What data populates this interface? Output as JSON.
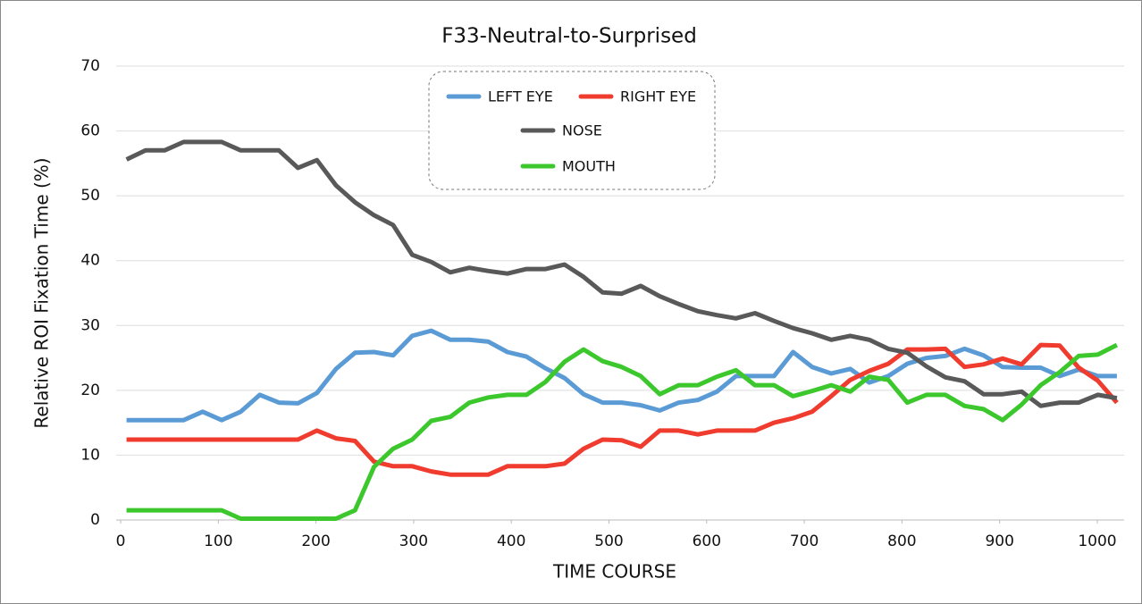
{
  "chart_data": {
    "type": "line",
    "title": "F33-Neutral-to-Surprised",
    "x_label": "TIME  COURSE",
    "y_label": "Relative  ROI  Fixation  Time  (%)",
    "x": [
      6,
      25.5,
      45,
      64.5,
      84,
      103.5,
      123,
      142.5,
      162,
      181.5,
      201,
      220.5,
      240,
      259.5,
      279,
      298.5,
      318,
      337.5,
      357,
      376.5,
      396,
      415.5,
      435,
      454.5,
      474,
      493.5,
      513,
      532.5,
      552,
      571.5,
      591,
      610.5,
      630,
      649.5,
      669,
      688.5,
      708,
      727.5,
      747,
      766.5,
      786,
      805.5,
      825,
      844.5,
      864,
      883.5,
      903,
      922.5,
      942,
      961.5,
      981,
      1000.5,
      1020
    ],
    "series": [
      {
        "name": "LEFT EYE",
        "color": "#5b9bd5",
        "values": [
          15.4,
          15.4,
          15.4,
          15.4,
          16.7,
          15.4,
          16.7,
          19.3,
          18.1,
          18,
          19.6,
          23.3,
          25.8,
          25.9,
          25.4,
          28.4,
          29.2,
          27.8,
          27.8,
          27.5,
          25.9,
          25.2,
          23.4,
          21.9,
          19.4,
          18.1,
          18.1,
          17.7,
          16.9,
          18.1,
          18.5,
          19.8,
          22.2,
          22.2,
          22.2,
          25.9,
          23.6,
          22.6,
          23.3,
          21.2,
          22.2,
          24.1,
          25,
          25.3,
          26.4,
          25.4,
          23.6,
          23.5,
          23.5,
          22.2,
          23.2,
          22.2,
          22.2
        ]
      },
      {
        "name": "RIGHT EYE",
        "color": "#f03c2e",
        "values": [
          12.4,
          12.4,
          12.4,
          12.4,
          12.4,
          12.4,
          12.4,
          12.4,
          12.4,
          12.4,
          13.8,
          12.6,
          12.2,
          9,
          8.3,
          8.3,
          7.5,
          7,
          7,
          7,
          8.3,
          8.3,
          8.3,
          8.7,
          11,
          12.4,
          12.3,
          11.3,
          13.8,
          13.8,
          13.2,
          13.8,
          13.8,
          13.8,
          15,
          15.7,
          16.7,
          19.1,
          21.6,
          23,
          24.1,
          26.3,
          26.3,
          26.4,
          23.6,
          24,
          24.9,
          24,
          27,
          26.9,
          23.5,
          21.5,
          18.1
        ]
      },
      {
        "name": "NOSE",
        "color": "#595959",
        "values": [
          55.6,
          57,
          57,
          58.3,
          58.3,
          58.3,
          57,
          57,
          57,
          54.3,
          55.5,
          51.6,
          49,
          47,
          45.5,
          40.9,
          39.8,
          38.2,
          38.9,
          38.4,
          38,
          38.7,
          38.7,
          39.4,
          37.5,
          35.1,
          34.9,
          36.1,
          34.5,
          33.3,
          32.2,
          31.6,
          31.1,
          31.9,
          30.7,
          29.6,
          28.8,
          27.8,
          28.4,
          27.8,
          26.4,
          25.8,
          23.7,
          22,
          21.4,
          19.4,
          19.4,
          19.8,
          17.6,
          18.1,
          18.1,
          19.3,
          18.8
        ]
      },
      {
        "name": "MOUTH",
        "color": "#3cc82d",
        "values": [
          1.5,
          1.5,
          1.5,
          1.5,
          1.5,
          1.5,
          0.2,
          0.2,
          0.2,
          0.2,
          0.2,
          0.2,
          1.5,
          8.2,
          11,
          12.4,
          15.3,
          15.9,
          18.1,
          18.9,
          19.3,
          19.3,
          21.3,
          24.4,
          26.3,
          24.5,
          23.6,
          22.2,
          19.4,
          20.8,
          20.8,
          22.1,
          23.1,
          20.8,
          20.8,
          19.1,
          19.9,
          20.8,
          19.8,
          22.1,
          21.6,
          18.1,
          19.3,
          19.3,
          17.6,
          17.1,
          15.4,
          17.8,
          20.8,
          22.8,
          25.3,
          25.5,
          27
        ]
      }
    ],
    "xlim": [
      0,
      1030
    ],
    "xticks": [
      0,
      100,
      200,
      300,
      400,
      500,
      600,
      700,
      800,
      900,
      1000
    ],
    "ylim": [
      0,
      70
    ],
    "yticks": [
      0,
      10,
      20,
      30,
      40,
      50,
      60,
      70
    ],
    "grid": true,
    "legend": "top-center"
  }
}
